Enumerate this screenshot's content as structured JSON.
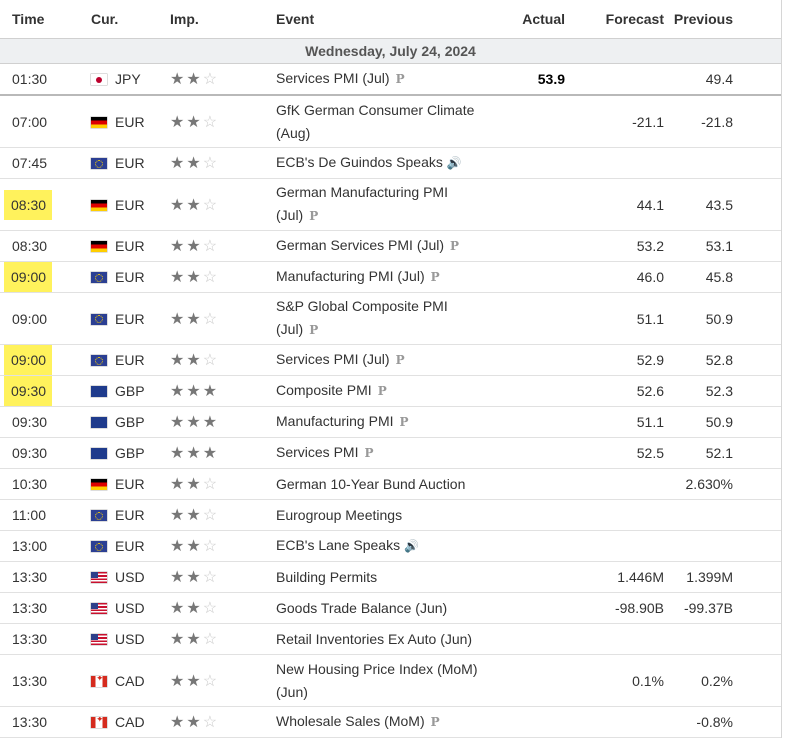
{
  "headers": {
    "time": "Time",
    "cur": "Cur.",
    "imp": "Imp.",
    "event": "Event",
    "actual": "Actual",
    "forecast": "Forecast",
    "previous": "Previous"
  },
  "date_label": "Wednesday, July 24, 2024",
  "rows": [
    {
      "time": "01:30",
      "hl": false,
      "flag": "jp",
      "cur": "JPY",
      "imp": 2,
      "event": "Services PMI (Jul)",
      "icon": "p",
      "actual": "53.9",
      "forecast": "",
      "previous": "49.4"
    },
    {
      "time": "07:00",
      "hl": false,
      "flag": "de",
      "cur": "EUR",
      "imp": 2,
      "event": "GfK German Consumer Climate (Aug)",
      "icon": "",
      "actual": "",
      "forecast": "-21.1",
      "previous": "-21.8"
    },
    {
      "time": "07:45",
      "hl": false,
      "flag": "eu",
      "cur": "EUR",
      "imp": 2,
      "event": "ECB's De Guindos Speaks",
      "icon": "speaker",
      "actual": "",
      "forecast": "",
      "previous": ""
    },
    {
      "time": "08:30",
      "hl": true,
      "flag": "de",
      "cur": "EUR",
      "imp": 2,
      "event": "German Manufacturing PMI (Jul)",
      "icon": "p",
      "actual": "",
      "forecast": "44.1",
      "previous": "43.5"
    },
    {
      "time": "08:30",
      "hl": false,
      "flag": "de",
      "cur": "EUR",
      "imp": 2,
      "event": "German Services PMI (Jul)",
      "icon": "p",
      "actual": "",
      "forecast": "53.2",
      "previous": "53.1"
    },
    {
      "time": "09:00",
      "hl": true,
      "flag": "eu",
      "cur": "EUR",
      "imp": 2,
      "event": "Manufacturing PMI (Jul)",
      "icon": "p",
      "actual": "",
      "forecast": "46.0",
      "previous": "45.8"
    },
    {
      "time": "09:00",
      "hl": false,
      "flag": "eu",
      "cur": "EUR",
      "imp": 2,
      "event": "S&P Global Composite PMI (Jul)",
      "icon": "p",
      "actual": "",
      "forecast": "51.1",
      "previous": "50.9"
    },
    {
      "time": "09:00",
      "hl": true,
      "flag": "eu",
      "cur": "EUR",
      "imp": 2,
      "event": "Services PMI (Jul)",
      "icon": "p",
      "actual": "",
      "forecast": "52.9",
      "previous": "52.8"
    },
    {
      "time": "09:30",
      "hl": true,
      "flag": "gb",
      "cur": "GBP",
      "imp": 3,
      "event": "Composite PMI",
      "icon": "p",
      "actual": "",
      "forecast": "52.6",
      "previous": "52.3"
    },
    {
      "time": "09:30",
      "hl": false,
      "flag": "gb",
      "cur": "GBP",
      "imp": 3,
      "event": "Manufacturing PMI",
      "icon": "p",
      "actual": "",
      "forecast": "51.1",
      "previous": "50.9"
    },
    {
      "time": "09:30",
      "hl": false,
      "flag": "gb",
      "cur": "GBP",
      "imp": 3,
      "event": "Services PMI",
      "icon": "p",
      "actual": "",
      "forecast": "52.5",
      "previous": "52.1"
    },
    {
      "time": "10:30",
      "hl": false,
      "flag": "de",
      "cur": "EUR",
      "imp": 2,
      "event": "German 10-Year Bund Auction",
      "icon": "",
      "actual": "",
      "forecast": "",
      "previous": "2.630%"
    },
    {
      "time": "11:00",
      "hl": false,
      "flag": "eu",
      "cur": "EUR",
      "imp": 2,
      "event": "Eurogroup Meetings",
      "icon": "",
      "actual": "",
      "forecast": "",
      "previous": ""
    },
    {
      "time": "13:00",
      "hl": false,
      "flag": "eu",
      "cur": "EUR",
      "imp": 2,
      "event": "ECB's Lane Speaks",
      "icon": "speaker",
      "actual": "",
      "forecast": "",
      "previous": ""
    },
    {
      "time": "13:30",
      "hl": false,
      "flag": "us",
      "cur": "USD",
      "imp": 2,
      "event": "Building Permits",
      "icon": "",
      "actual": "",
      "forecast": "1.446M",
      "previous": "1.399M"
    },
    {
      "time": "13:30",
      "hl": false,
      "flag": "us",
      "cur": "USD",
      "imp": 2,
      "event": "Goods Trade Balance (Jun)",
      "icon": "",
      "actual": "",
      "forecast": "-98.90B",
      "previous": "-99.37B"
    },
    {
      "time": "13:30",
      "hl": false,
      "flag": "us",
      "cur": "USD",
      "imp": 2,
      "event": "Retail Inventories Ex Auto (Jun)",
      "icon": "",
      "actual": "",
      "forecast": "",
      "previous": ""
    },
    {
      "time": "13:30",
      "hl": false,
      "flag": "ca",
      "cur": "CAD",
      "imp": 2,
      "event": "New Housing Price Index (MoM) (Jun)",
      "icon": "",
      "actual": "",
      "forecast": "0.1%",
      "previous": "0.2%"
    },
    {
      "time": "13:30",
      "hl": false,
      "flag": "ca",
      "cur": "CAD",
      "imp": 2,
      "event": "Wholesale Sales (MoM)",
      "icon": "p",
      "actual": "",
      "forecast": "",
      "previous": "-0.8%"
    }
  ],
  "icons": {
    "p": "P",
    "speaker": "🔊"
  },
  "colors": {
    "highlight": "#fff25c",
    "date_bg": "#eef0f2"
  }
}
